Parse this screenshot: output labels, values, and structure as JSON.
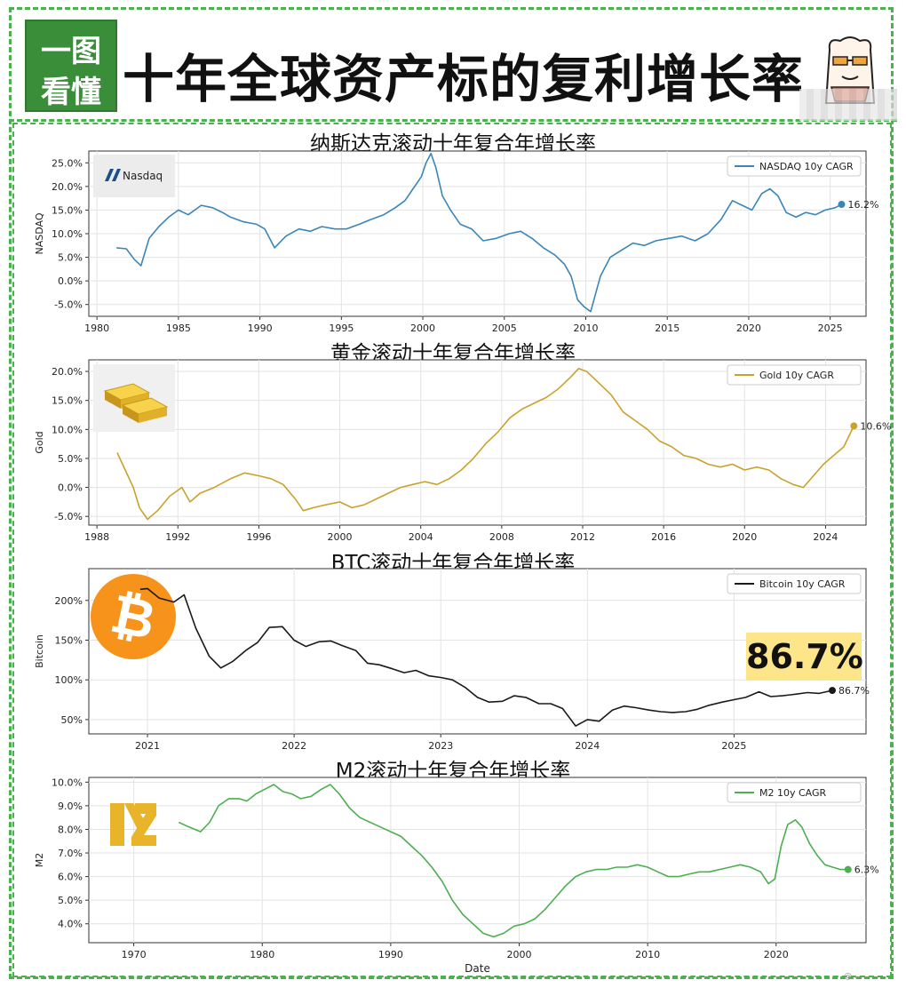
{
  "header": {
    "logo_line1": "一图",
    "logo_line2": "看懂",
    "title": "十年全球资产标的复利增长率"
  },
  "callout": {
    "text": "86.7%"
  },
  "watermark": {
    "text": "@..."
  },
  "charts": [
    {
      "id": "nasdaq",
      "heading": "纳斯达克滚动十年复合年增长率",
      "ylabel": "NASDAQ",
      "legend": "NASDAQ 10y CAGR",
      "last_label": "16.2%",
      "color": "#3a86b8",
      "badge": "Nasdaq",
      "xticks": [
        1980,
        1985,
        1990,
        1995,
        2000,
        2005,
        2010,
        2015,
        2020,
        2025
      ],
      "yticks": [
        -5,
        0,
        5,
        10,
        15,
        20,
        25
      ],
      "ytick_fmt": "pct1"
    },
    {
      "id": "gold",
      "heading": "黄金滚动十年复合年增长率",
      "ylabel": "Gold",
      "legend": "Gold 10y CAGR",
      "last_label": "10.6%",
      "color": "#c9a22c",
      "xticks": [
        1988,
        1992,
        1996,
        2000,
        2004,
        2008,
        2012,
        2016,
        2020,
        2024
      ],
      "yticks": [
        -5,
        0,
        5,
        10,
        15,
        20
      ],
      "ytick_fmt": "pct1"
    },
    {
      "id": "btc",
      "heading": "BTC滚动十年复合年增长率",
      "ylabel": "Bitcoin",
      "legend": "Bitcoin 10y CAGR",
      "last_label": "86.7%",
      "color": "#1a1a1a",
      "xticks": [
        2021,
        2022,
        2023,
        2024,
        2025
      ],
      "yticks": [
        50,
        100,
        150,
        200
      ],
      "ytick_fmt": "pct0"
    },
    {
      "id": "m2",
      "heading": "M2滚动十年复合年增长率",
      "ylabel": "M2",
      "xlabel": "Date",
      "legend": "M2 10y CAGR",
      "last_label": "6.3%",
      "color": "#4caf50",
      "xticks": [
        1970,
        1980,
        1990,
        2000,
        2010,
        2020
      ],
      "yticks": [
        4,
        5,
        6,
        7,
        8,
        9,
        10
      ],
      "ytick_fmt": "pct1"
    }
  ],
  "chart_data": [
    {
      "type": "line",
      "title": "纳斯达克滚动十年复合年增长率",
      "ylabel": "NASDAQ",
      "xlim": [
        1979.5,
        2027.2
      ],
      "ylim": [
        -7.5,
        27.5
      ],
      "series": [
        {
          "name": "NASDAQ 10y CAGR",
          "x": [
            1981.2,
            1981.8,
            1982.3,
            1982.7,
            1983.2,
            1983.8,
            1984.4,
            1985.0,
            1985.6,
            1986.4,
            1987.1,
            1987.7,
            1988.2,
            1989.0,
            1989.8,
            1990.3,
            1990.9,
            1991.6,
            1992.4,
            1993.1,
            1993.8,
            1994.6,
            1995.3,
            1996.1,
            1996.8,
            1997.6,
            1998.3,
            1998.9,
            1999.4,
            1999.9,
            2000.2,
            2000.5,
            2000.8,
            2001.2,
            2001.7,
            2002.3,
            2003.0,
            2003.7,
            2004.5,
            2005.3,
            2006.0,
            2006.7,
            2007.4,
            2008.1,
            2008.7,
            2009.1,
            2009.5,
            2009.9,
            2010.3,
            2010.9,
            2011.5,
            2012.2,
            2012.9,
            2013.6,
            2014.3,
            2015.1,
            2015.9,
            2016.7,
            2017.5,
            2018.3,
            2019.0,
            2019.6,
            2020.2,
            2020.8,
            2021.3,
            2021.8,
            2022.3,
            2022.9,
            2023.5,
            2024.1,
            2024.7,
            2025.3,
            2025.7
          ],
          "values": [
            7.0,
            6.8,
            4.5,
            3.2,
            9.0,
            11.5,
            13.5,
            15.0,
            14.0,
            16.0,
            15.5,
            14.5,
            13.5,
            12.5,
            12.0,
            11.0,
            7.0,
            9.5,
            11.0,
            10.5,
            11.5,
            11.0,
            11.0,
            12.0,
            13.0,
            14.0,
            15.5,
            17.0,
            19.5,
            22.0,
            25.0,
            27.0,
            24.0,
            18.0,
            15.0,
            12.0,
            11.0,
            8.5,
            9.0,
            10.0,
            10.5,
            9.0,
            7.0,
            5.5,
            3.5,
            1.0,
            -4.0,
            -5.5,
            -6.5,
            1.0,
            5.0,
            6.5,
            8.0,
            7.5,
            8.5,
            9.0,
            9.5,
            8.5,
            10.0,
            13.0,
            17.0,
            16.0,
            15.0,
            18.5,
            19.5,
            18.0,
            14.5,
            13.5,
            14.5,
            14.0,
            15.0,
            15.5,
            16.2
          ]
        }
      ]
    },
    {
      "type": "line",
      "title": "黄金滚动十年复合年增长率",
      "ylabel": "Gold",
      "xlim": [
        1987.6,
        2026.0
      ],
      "ylim": [
        -6.5,
        22.0
      ],
      "series": [
        {
          "name": "Gold 10y CAGR",
          "x": [
            1989.0,
            1989.4,
            1989.8,
            1990.1,
            1990.5,
            1991.0,
            1991.6,
            1992.2,
            1992.6,
            1993.1,
            1993.8,
            1994.6,
            1995.3,
            1996.0,
            1996.6,
            1997.2,
            1997.8,
            1998.2,
            1998.7,
            1999.3,
            2000.0,
            2000.6,
            2001.2,
            2001.8,
            2002.4,
            2003.0,
            2003.6,
            2004.2,
            2004.8,
            2005.4,
            2006.0,
            2006.6,
            2007.2,
            2007.8,
            2008.4,
            2009.0,
            2009.6,
            2010.2,
            2010.8,
            2011.4,
            2011.8,
            2012.2,
            2012.8,
            2013.4,
            2014.0,
            2014.6,
            2015.2,
            2015.8,
            2016.4,
            2017.0,
            2017.6,
            2018.2,
            2018.8,
            2019.4,
            2020.0,
            2020.6,
            2021.2,
            2021.8,
            2022.4,
            2022.9,
            2023.4,
            2023.9,
            2024.4,
            2024.9,
            2025.4
          ],
          "values": [
            6.0,
            3.0,
            0.0,
            -3.5,
            -5.5,
            -4.0,
            -1.5,
            0.0,
            -2.5,
            -1.0,
            0.0,
            1.5,
            2.5,
            2.0,
            1.5,
            0.5,
            -2.0,
            -4.0,
            -3.5,
            -3.0,
            -2.5,
            -3.5,
            -3.0,
            -2.0,
            -1.0,
            0.0,
            0.5,
            1.0,
            0.5,
            1.5,
            3.0,
            5.0,
            7.5,
            9.5,
            12.0,
            13.5,
            14.5,
            15.5,
            17.0,
            19.0,
            20.5,
            20.0,
            18.0,
            16.0,
            13.0,
            11.5,
            10.0,
            8.0,
            7.0,
            5.5,
            5.0,
            4.0,
            3.5,
            4.0,
            3.0,
            3.5,
            3.0,
            1.5,
            0.5,
            0.0,
            2.0,
            4.0,
            5.5,
            7.0,
            10.6
          ]
        }
      ]
    },
    {
      "type": "line",
      "title": "BTC滚动十年复合年增长率",
      "ylabel": "Bitcoin",
      "xlim": [
        2020.6,
        2025.9
      ],
      "ylim": [
        32,
        240
      ],
      "series": [
        {
          "name": "Bitcoin 10y CAGR",
          "x": [
            2020.95,
            2021.0,
            2021.08,
            2021.18,
            2021.25,
            2021.33,
            2021.42,
            2021.5,
            2021.58,
            2021.67,
            2021.75,
            2021.83,
            2021.92,
            2022.0,
            2022.08,
            2022.17,
            2022.25,
            2022.33,
            2022.42,
            2022.5,
            2022.58,
            2022.67,
            2022.75,
            2022.83,
            2022.92,
            2023.0,
            2023.08,
            2023.17,
            2023.25,
            2023.33,
            2023.42,
            2023.5,
            2023.58,
            2023.67,
            2023.75,
            2023.83,
            2023.92,
            2024.0,
            2024.08,
            2024.17,
            2024.25,
            2024.33,
            2024.42,
            2024.5,
            2024.58,
            2024.67,
            2024.75,
            2024.83,
            2024.92,
            2025.0,
            2025.08,
            2025.17,
            2025.25,
            2025.33,
            2025.42,
            2025.5,
            2025.58,
            2025.67
          ],
          "values": [
            214,
            215,
            203,
            198,
            207,
            165,
            130,
            115,
            123,
            137,
            147,
            166,
            167,
            150,
            142,
            148,
            149,
            143,
            137,
            121,
            119,
            114,
            109,
            112,
            105,
            103,
            100,
            90,
            78,
            72,
            73,
            80,
            78,
            70,
            70,
            64,
            42,
            50,
            48,
            62,
            67,
            65,
            62,
            60,
            59,
            60,
            63,
            68,
            72,
            75,
            78,
            85,
            79,
            80,
            82,
            84,
            83,
            86.7
          ]
        }
      ]
    },
    {
      "type": "line",
      "title": "M2滚动十年复合年增长率",
      "ylabel": "M2",
      "xlabel": "Date",
      "xlim": [
        1966.5,
        2027.0
      ],
      "ylim": [
        3.2,
        10.2
      ],
      "series": [
        {
          "name": "M2 10y CAGR",
          "x": [
            1973.5,
            1974.3,
            1975.2,
            1975.9,
            1976.6,
            1977.4,
            1978.2,
            1978.8,
            1979.5,
            1980.2,
            1980.9,
            1981.6,
            1982.3,
            1983.0,
            1983.8,
            1984.6,
            1985.3,
            1986.0,
            1986.8,
            1987.6,
            1988.4,
            1989.2,
            1990.0,
            1990.8,
            1991.6,
            1992.4,
            1993.2,
            1994.0,
            1994.8,
            1995.6,
            1996.4,
            1997.2,
            1998.0,
            1998.8,
            1999.6,
            2000.4,
            2001.2,
            2002.0,
            2002.8,
            2003.6,
            2004.4,
            2005.2,
            2006.0,
            2006.8,
            2007.6,
            2008.4,
            2009.2,
            2010.0,
            2010.8,
            2011.6,
            2012.4,
            2013.2,
            2014.0,
            2014.8,
            2015.6,
            2016.4,
            2017.2,
            2018.0,
            2018.8,
            2019.4,
            2019.9,
            2020.4,
            2020.9,
            2021.5,
            2022.0,
            2022.6,
            2023.2,
            2023.8,
            2024.4,
            2025.0,
            2025.6
          ],
          "values": [
            8.3,
            8.1,
            7.9,
            8.3,
            9.0,
            9.3,
            9.3,
            9.2,
            9.5,
            9.7,
            9.9,
            9.6,
            9.5,
            9.3,
            9.4,
            9.7,
            9.9,
            9.5,
            8.9,
            8.5,
            8.3,
            8.1,
            7.9,
            7.7,
            7.3,
            6.9,
            6.4,
            5.8,
            5.0,
            4.4,
            4.0,
            3.6,
            3.45,
            3.6,
            3.9,
            4.0,
            4.2,
            4.6,
            5.1,
            5.6,
            6.0,
            6.2,
            6.3,
            6.3,
            6.4,
            6.4,
            6.5,
            6.4,
            6.2,
            6.0,
            6.0,
            6.1,
            6.2,
            6.2,
            6.3,
            6.4,
            6.5,
            6.4,
            6.2,
            5.7,
            5.9,
            7.3,
            8.2,
            8.4,
            8.1,
            7.4,
            6.9,
            6.5,
            6.4,
            6.3,
            6.3
          ]
        }
      ]
    }
  ]
}
